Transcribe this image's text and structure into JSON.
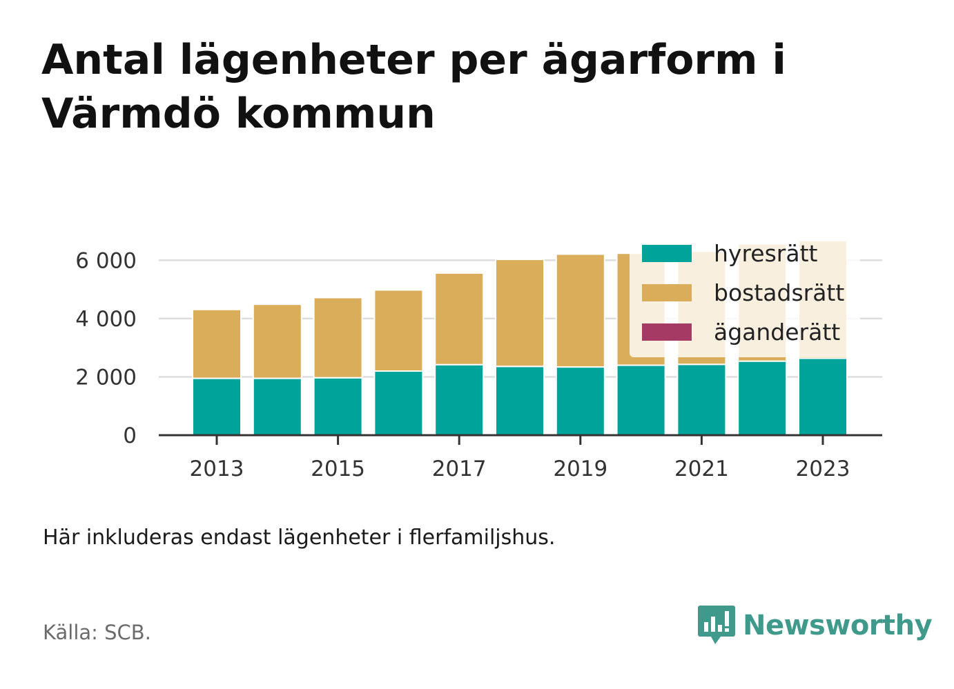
{
  "title": "Antal lägenheter per ägarform i Värmdö kommun",
  "note": "Här inkluderas endast lägenheter i flerfamiljshus.",
  "source": "Källa: SCB.",
  "logo": {
    "text": "Newsworthy",
    "icon": "bar-chart-speech-bubble-icon",
    "color": "#3f9a8c"
  },
  "chart_data": {
    "type": "bar",
    "stacked": true,
    "x": [
      2013,
      2014,
      2015,
      2016,
      2017,
      2018,
      2019,
      2020,
      2021,
      2022,
      2023
    ],
    "x_tick_labels": [
      "2013",
      "2015",
      "2017",
      "2019",
      "2021",
      "2023"
    ],
    "y_ticks": [
      0,
      2000,
      4000,
      6000
    ],
    "y_tick_labels": [
      "0",
      "2 000",
      "4 000",
      "6 000"
    ],
    "ylim": [
      0,
      6600
    ],
    "grid": true,
    "legend_position": "top-right",
    "series": [
      {
        "name": "hyresrätt",
        "color": "#00a399",
        "values": [
          1950,
          1950,
          1970,
          2200,
          2420,
          2360,
          2340,
          2400,
          2430,
          2540,
          2640
        ]
      },
      {
        "name": "bostadsrätt",
        "color": "#d9ad5a",
        "values": [
          2360,
          2540,
          2750,
          2780,
          3140,
          3670,
          3870,
          3840,
          3880,
          4020,
          4030
        ]
      },
      {
        "name": "äganderätt",
        "color": "#a53b65",
        "values": [
          0,
          0,
          0,
          0,
          0,
          0,
          0,
          0,
          0,
          0,
          0
        ]
      }
    ]
  }
}
